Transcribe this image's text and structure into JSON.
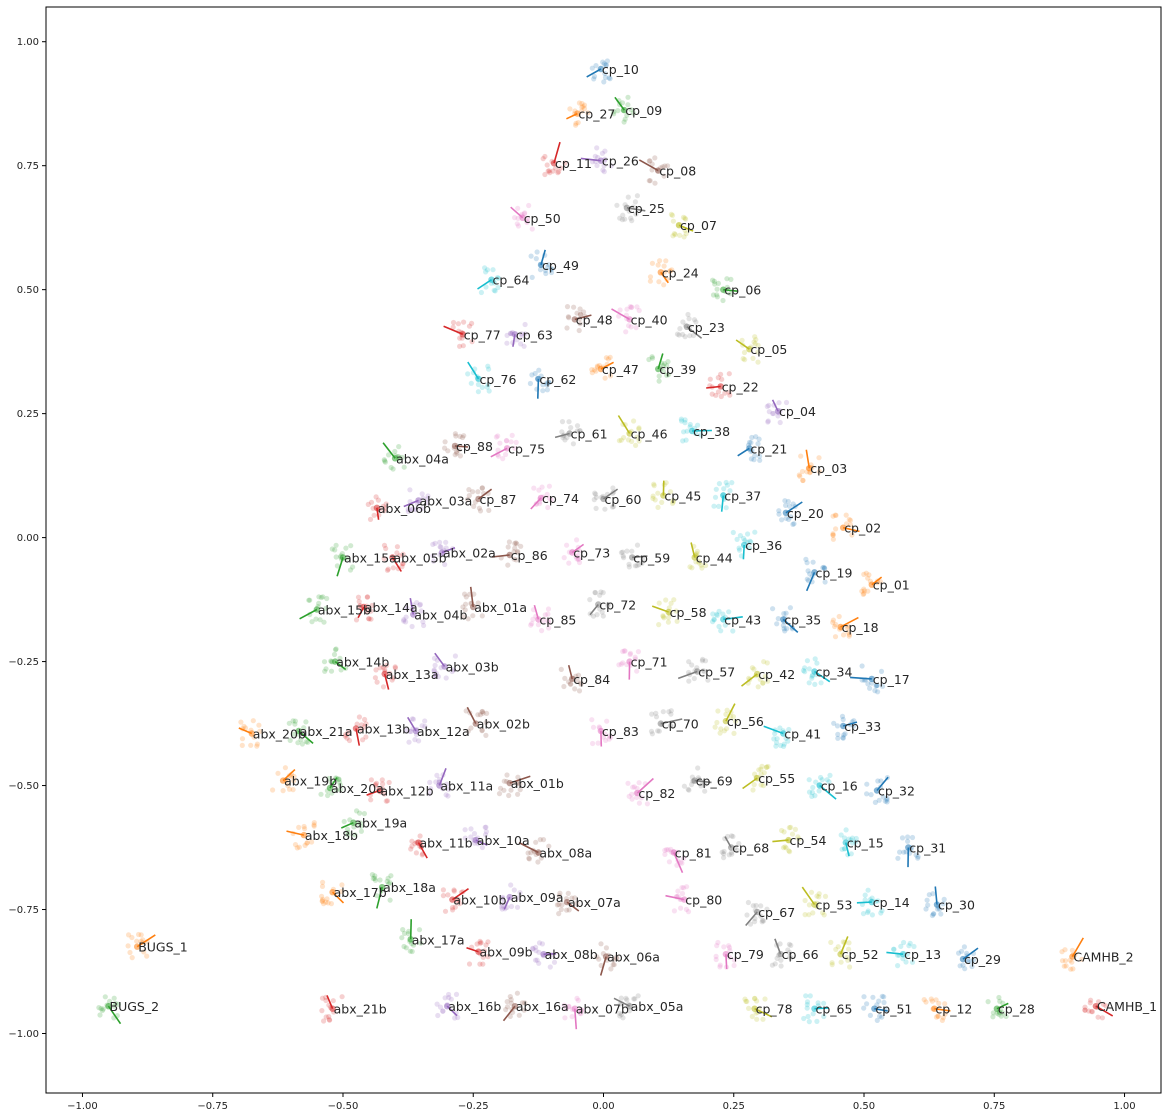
{
  "chart_data": {
    "type": "scatter",
    "title": "",
    "xlabel": "",
    "ylabel": "",
    "xlim": [
      -1.07,
      1.07
    ],
    "ylim": [
      -1.12,
      1.07
    ],
    "grid": false,
    "legend": "none",
    "x_ticks": [
      -1.0,
      -0.75,
      -0.5,
      -0.25,
      0.0,
      0.25,
      0.5,
      0.75,
      1.0
    ],
    "x_tick_labels": [
      "−1.00",
      "−0.75",
      "−0.50",
      "−0.25",
      "0.00",
      "0.25",
      "0.50",
      "0.75",
      "1.00"
    ],
    "y_ticks": [
      1.0,
      0.75,
      0.5,
      0.25,
      0.0,
      -0.25,
      -0.5,
      -0.75,
      -1.0
    ],
    "y_tick_labels": [
      "1.00",
      "0.75",
      "0.50",
      "0.25",
      "0.00",
      "−0.25",
      "−0.50",
      "−0.75",
      "−1.00"
    ],
    "palette": [
      "#1f77b4",
      "#ff7f0e",
      "#2ca02c",
      "#d62728",
      "#9467bd",
      "#8c564b",
      "#e377c2",
      "#7f7f7f",
      "#bcbd22",
      "#17becf"
    ],
    "points": [
      {
        "label": "cp_10",
        "x": -0.005,
        "y": 0.945
      },
      {
        "label": "cp_27",
        "x": -0.05,
        "y": 0.855
      },
      {
        "label": "cp_09",
        "x": 0.04,
        "y": 0.862
      },
      {
        "label": "cp_11",
        "x": -0.095,
        "y": 0.755
      },
      {
        "label": "cp_26",
        "x": -0.005,
        "y": 0.76
      },
      {
        "label": "cp_08",
        "x": 0.105,
        "y": 0.74
      },
      {
        "label": "cp_50",
        "x": -0.155,
        "y": 0.645
      },
      {
        "label": "cp_25",
        "x": 0.045,
        "y": 0.665
      },
      {
        "label": "cp_07",
        "x": 0.145,
        "y": 0.63
      },
      {
        "label": "cp_64",
        "x": -0.215,
        "y": 0.52
      },
      {
        "label": "cp_49",
        "x": -0.12,
        "y": 0.55
      },
      {
        "label": "cp_24",
        "x": 0.11,
        "y": 0.535
      },
      {
        "label": "cp_06",
        "x": 0.23,
        "y": 0.5
      },
      {
        "label": "cp_77",
        "x": -0.27,
        "y": 0.41
      },
      {
        "label": "cp_63",
        "x": -0.17,
        "y": 0.41
      },
      {
        "label": "cp_48",
        "x": -0.055,
        "y": 0.44
      },
      {
        "label": "cp_40",
        "x": 0.05,
        "y": 0.44
      },
      {
        "label": "cp_23",
        "x": 0.16,
        "y": 0.425
      },
      {
        "label": "cp_05",
        "x": 0.28,
        "y": 0.38
      },
      {
        "label": "cp_76",
        "x": -0.24,
        "y": 0.32
      },
      {
        "label": "cp_62",
        "x": -0.125,
        "y": 0.32
      },
      {
        "label": "cp_47",
        "x": -0.005,
        "y": 0.34
      },
      {
        "label": "cp_39",
        "x": 0.105,
        "y": 0.34
      },
      {
        "label": "cp_22",
        "x": 0.225,
        "y": 0.305
      },
      {
        "label": "cp_04",
        "x": 0.335,
        "y": 0.255
      },
      {
        "label": "cp_88",
        "x": -0.285,
        "y": 0.185
      },
      {
        "label": "cp_75",
        "x": -0.185,
        "y": 0.18
      },
      {
        "label": "cp_61",
        "x": -0.065,
        "y": 0.21
      },
      {
        "label": "cp_46",
        "x": 0.05,
        "y": 0.21
      },
      {
        "label": "cp_38",
        "x": 0.17,
        "y": 0.215
      },
      {
        "label": "cp_21",
        "x": 0.28,
        "y": 0.18
      },
      {
        "label": "cp_03",
        "x": 0.395,
        "y": 0.14
      },
      {
        "label": "abx_04a",
        "x": -0.4,
        "y": 0.16
      },
      {
        "label": "abx_06b",
        "x": -0.435,
        "y": 0.06
      },
      {
        "label": "abx_03a",
        "x": -0.355,
        "y": 0.075
      },
      {
        "label": "cp_87",
        "x": -0.24,
        "y": 0.078
      },
      {
        "label": "cp_74",
        "x": -0.12,
        "y": 0.08
      },
      {
        "label": "cp_60",
        "x": 0.0,
        "y": 0.078
      },
      {
        "label": "cp_45",
        "x": 0.115,
        "y": 0.085
      },
      {
        "label": "cp_37",
        "x": 0.23,
        "y": 0.085
      },
      {
        "label": "cp_20",
        "x": 0.35,
        "y": 0.05
      },
      {
        "label": "cp_02",
        "x": 0.46,
        "y": 0.02
      },
      {
        "label": "abx_15a",
        "x": -0.5,
        "y": -0.04
      },
      {
        "label": "abx_05b",
        "x": -0.405,
        "y": -0.04
      },
      {
        "label": "abx_02a",
        "x": -0.31,
        "y": -0.03
      },
      {
        "label": "cp_86",
        "x": -0.18,
        "y": -0.035
      },
      {
        "label": "cp_73",
        "x": -0.06,
        "y": -0.03
      },
      {
        "label": "cp_59",
        "x": 0.055,
        "y": -0.04
      },
      {
        "label": "cp_44",
        "x": 0.175,
        "y": -0.04
      },
      {
        "label": "cp_36",
        "x": 0.27,
        "y": -0.015
      },
      {
        "label": "cp_19",
        "x": 0.405,
        "y": -0.07
      },
      {
        "label": "cp_01",
        "x": 0.515,
        "y": -0.095
      },
      {
        "label": "abx_15b",
        "x": -0.55,
        "y": -0.145
      },
      {
        "label": "abx_14a",
        "x": -0.46,
        "y": -0.14
      },
      {
        "label": "abx_04b",
        "x": -0.365,
        "y": -0.155
      },
      {
        "label": "abx_01a",
        "x": -0.25,
        "y": -0.14
      },
      {
        "label": "cp_85",
        "x": -0.125,
        "y": -0.165
      },
      {
        "label": "cp_72",
        "x": -0.01,
        "y": -0.135
      },
      {
        "label": "cp_58",
        "x": 0.125,
        "y": -0.15
      },
      {
        "label": "cp_43",
        "x": 0.23,
        "y": -0.165
      },
      {
        "label": "cp_35",
        "x": 0.345,
        "y": -0.165
      },
      {
        "label": "cp_18",
        "x": 0.455,
        "y": -0.18
      },
      {
        "label": "abx_14b",
        "x": -0.515,
        "y": -0.25
      },
      {
        "label": "abx_13a",
        "x": -0.42,
        "y": -0.275
      },
      {
        "label": "abx_03b",
        "x": -0.305,
        "y": -0.26
      },
      {
        "label": "cp_84",
        "x": -0.06,
        "y": -0.285
      },
      {
        "label": "cp_71",
        "x": 0.05,
        "y": -0.25
      },
      {
        "label": "cp_57",
        "x": 0.18,
        "y": -0.27
      },
      {
        "label": "cp_42",
        "x": 0.295,
        "y": -0.275
      },
      {
        "label": "cp_34",
        "x": 0.405,
        "y": -0.27
      },
      {
        "label": "cp_17",
        "x": 0.515,
        "y": -0.285
      },
      {
        "label": "abx_20b",
        "x": -0.675,
        "y": -0.395
      },
      {
        "label": "abx_21a",
        "x": -0.585,
        "y": -0.39
      },
      {
        "label": "abx_13b",
        "x": -0.475,
        "y": -0.385
      },
      {
        "label": "abx_12a",
        "x": -0.36,
        "y": -0.39
      },
      {
        "label": "abx_02b",
        "x": -0.245,
        "y": -0.375
      },
      {
        "label": "cp_83",
        "x": -0.005,
        "y": -0.39
      },
      {
        "label": "cp_70",
        "x": 0.11,
        "y": -0.375
      },
      {
        "label": "cp_56",
        "x": 0.235,
        "y": -0.37
      },
      {
        "label": "cp_41",
        "x": 0.345,
        "y": -0.395
      },
      {
        "label": "cp_33",
        "x": 0.46,
        "y": -0.38
      },
      {
        "label": "abx_19b",
        "x": -0.615,
        "y": -0.49
      },
      {
        "label": "abx_20a",
        "x": -0.525,
        "y": -0.505
      },
      {
        "label": "abx_12b",
        "x": -0.43,
        "y": -0.51
      },
      {
        "label": "abx_11a",
        "x": -0.315,
        "y": -0.5
      },
      {
        "label": "abx_01b",
        "x": -0.18,
        "y": -0.495
      },
      {
        "label": "cp_82",
        "x": 0.065,
        "y": -0.515
      },
      {
        "label": "cp_69",
        "x": 0.175,
        "y": -0.49
      },
      {
        "label": "cp_55",
        "x": 0.295,
        "y": -0.485
      },
      {
        "label": "cp_16",
        "x": 0.415,
        "y": -0.5
      },
      {
        "label": "cp_32",
        "x": 0.525,
        "y": -0.51
      },
      {
        "label": "abx_18b",
        "x": -0.575,
        "y": -0.6
      },
      {
        "label": "abx_19a",
        "x": -0.48,
        "y": -0.575
      },
      {
        "label": "abx_11b",
        "x": -0.355,
        "y": -0.615
      },
      {
        "label": "abx_10a",
        "x": -0.245,
        "y": -0.61
      },
      {
        "label": "abx_08a",
        "x": -0.125,
        "y": -0.635
      },
      {
        "label": "cp_81",
        "x": 0.135,
        "y": -0.635
      },
      {
        "label": "cp_68",
        "x": 0.245,
        "y": -0.625
      },
      {
        "label": "cp_54",
        "x": 0.355,
        "y": -0.61
      },
      {
        "label": "cp_15",
        "x": 0.465,
        "y": -0.615
      },
      {
        "label": "cp_31",
        "x": 0.585,
        "y": -0.625
      },
      {
        "label": "abx_17b",
        "x": -0.52,
        "y": -0.715
      },
      {
        "label": "abx_18a",
        "x": -0.425,
        "y": -0.705
      },
      {
        "label": "abx_10b",
        "x": -0.29,
        "y": -0.73
      },
      {
        "label": "abx_09a",
        "x": -0.18,
        "y": -0.725
      },
      {
        "label": "abx_07a",
        "x": -0.07,
        "y": -0.735
      },
      {
        "label": "cp_80",
        "x": 0.155,
        "y": -0.73
      },
      {
        "label": "cp_67",
        "x": 0.295,
        "y": -0.755
      },
      {
        "label": "cp_53",
        "x": 0.405,
        "y": -0.74
      },
      {
        "label": "cp_14",
        "x": 0.515,
        "y": -0.735
      },
      {
        "label": "cp_30",
        "x": 0.64,
        "y": -0.74
      },
      {
        "label": "BUGS_1",
        "x": -0.895,
        "y": -0.825
      },
      {
        "label": "abx_17a",
        "x": -0.37,
        "y": -0.81
      },
      {
        "label": "abx_09b",
        "x": -0.24,
        "y": -0.835
      },
      {
        "label": "abx_08b",
        "x": -0.115,
        "y": -0.84
      },
      {
        "label": "abx_06a",
        "x": 0.005,
        "y": -0.845
      },
      {
        "label": "cp_79",
        "x": 0.235,
        "y": -0.84
      },
      {
        "label": "cp_66",
        "x": 0.34,
        "y": -0.84
      },
      {
        "label": "cp_52",
        "x": 0.455,
        "y": -0.84
      },
      {
        "label": "cp_13",
        "x": 0.575,
        "y": -0.84
      },
      {
        "label": "cp_29",
        "x": 0.69,
        "y": -0.85
      },
      {
        "label": "CAMHB_2",
        "x": 0.9,
        "y": -0.845
      },
      {
        "label": "BUGS_2",
        "x": -0.95,
        "y": -0.945
      },
      {
        "label": "abx_21b",
        "x": -0.52,
        "y": -0.95
      },
      {
        "label": "abx_16b",
        "x": -0.3,
        "y": -0.945
      },
      {
        "label": "abx_16a",
        "x": -0.17,
        "y": -0.945
      },
      {
        "label": "abx_07b",
        "x": -0.055,
        "y": -0.95
      },
      {
        "label": "abx_05a",
        "x": 0.05,
        "y": -0.945
      },
      {
        "label": "cp_78",
        "x": 0.29,
        "y": -0.95
      },
      {
        "label": "cp_65",
        "x": 0.405,
        "y": -0.95
      },
      {
        "label": "cp_51",
        "x": 0.52,
        "y": -0.95
      },
      {
        "label": "cp_12",
        "x": 0.635,
        "y": -0.95
      },
      {
        "label": "cp_28",
        "x": 0.755,
        "y": -0.95
      },
      {
        "label": "CAMHB_1",
        "x": 0.945,
        "y": -0.945
      }
    ]
  }
}
